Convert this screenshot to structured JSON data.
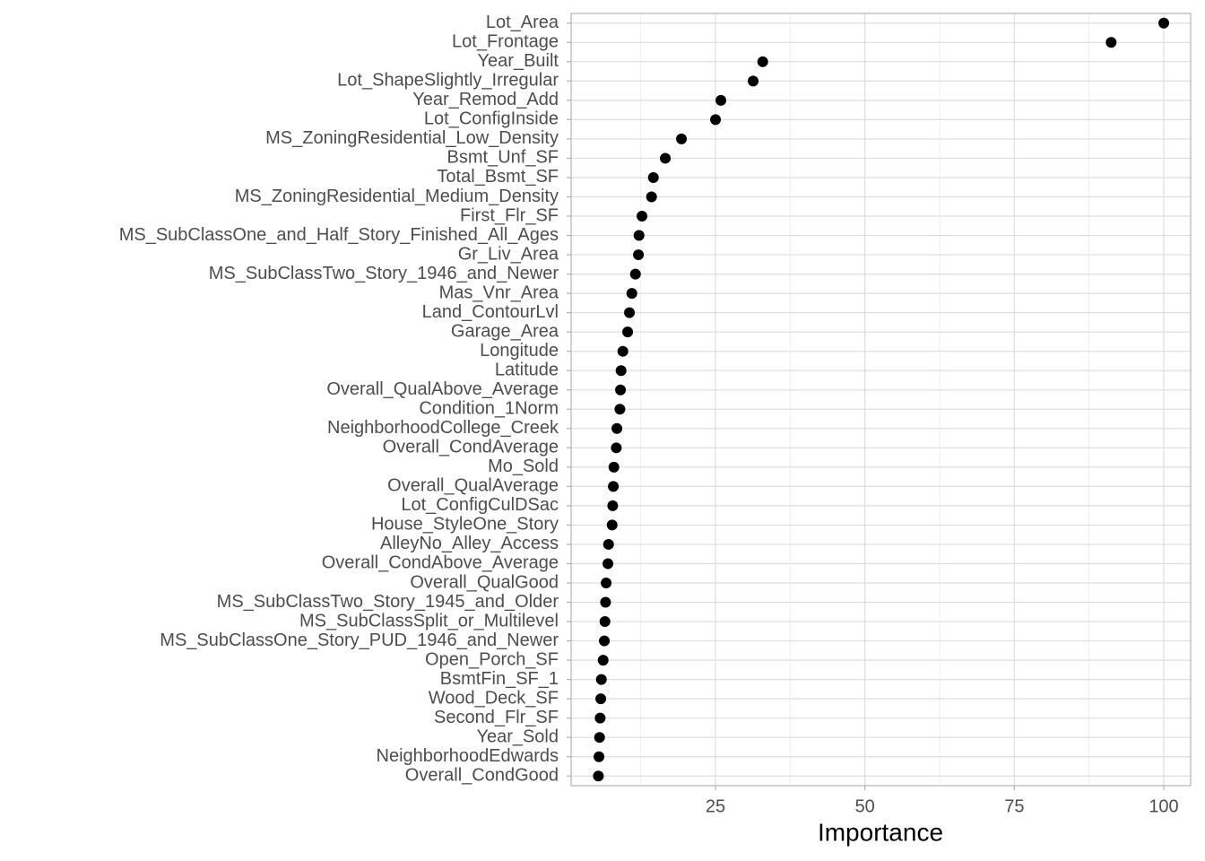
{
  "chart_data": {
    "type": "dot",
    "x_label": "Importance",
    "categories": [
      "Lot_Area",
      "Lot_Frontage",
      "Year_Built",
      "Lot_ShapeSlightly_Irregular",
      "Year_Remod_Add",
      "Lot_ConfigInside",
      "MS_ZoningResidential_Low_Density",
      "Bsmt_Unf_SF",
      "Total_Bsmt_SF",
      "MS_ZoningResidential_Medium_Density",
      "First_Flr_SF",
      "MS_SubClassOne_and_Half_Story_Finished_All_Ages",
      "Gr_Liv_Area",
      "MS_SubClassTwo_Story_1946_and_Newer",
      "Mas_Vnr_Area",
      "Land_ContourLvl",
      "Garage_Area",
      "Longitude",
      "Latitude",
      "Overall_QualAbove_Average",
      "Condition_1Norm",
      "NeighborhoodCollege_Creek",
      "Overall_CondAverage",
      "Mo_Sold",
      "Overall_QualAverage",
      "Lot_ConfigCulDSac",
      "House_StyleOne_Story",
      "AlleyNo_Alley_Access",
      "Overall_CondAbove_Average",
      "Overall_QualGood",
      "MS_SubClassTwo_Story_1945_and_Older",
      "MS_SubClassSplit_or_Multilevel",
      "MS_SubClassOne_Story_PUD_1946_and_Newer",
      "Open_Porch_SF",
      "BsmtFin_SF_1",
      "Wood_Deck_SF",
      "Second_Flr_SF",
      "Year_Sold",
      "NeighborhoodEdwards",
      "Overall_CondGood"
    ],
    "values": [
      100,
      91.2,
      32.9,
      31.3,
      25.9,
      25.0,
      19.3,
      16.6,
      14.6,
      14.3,
      12.7,
      12.2,
      12.1,
      11.6,
      11.0,
      10.6,
      10.3,
      9.5,
      9.2,
      9.1,
      9.0,
      8.5,
      8.4,
      8.0,
      7.9,
      7.8,
      7.7,
      7.1,
      7.0,
      6.7,
      6.6,
      6.5,
      6.4,
      6.2,
      5.9,
      5.8,
      5.7,
      5.6,
      5.5,
      5.4
    ],
    "color": "#000000",
    "xlim": [
      0.84,
      104.5
    ],
    "xticks": [
      25,
      50,
      75,
      100
    ],
    "x_minor_ticks": [
      12.5,
      37.5,
      62.5,
      87.5
    ],
    "grid": true
  }
}
